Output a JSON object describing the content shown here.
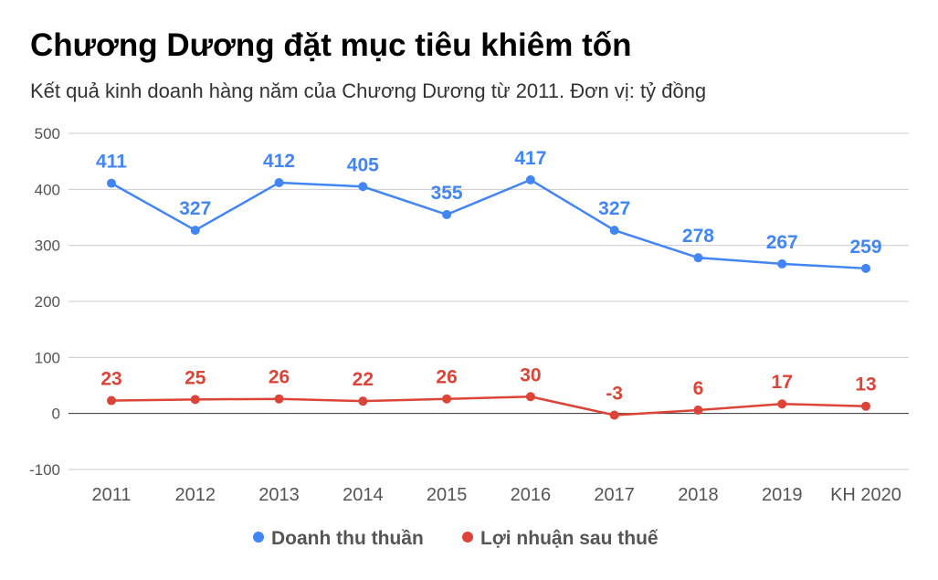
{
  "chart_data": {
    "type": "line",
    "title": "Chương Dương đặt mục tiêu khiêm tốn",
    "subtitle": "Kết quả kinh doanh hàng năm của Chương Dương từ 2011. Đơn vị: tỷ đồng",
    "categories": [
      "2011",
      "2012",
      "2013",
      "2014",
      "2015",
      "2016",
      "2017",
      "2018",
      "2019",
      "KH 2020"
    ],
    "ylim": [
      -100,
      500
    ],
    "yticks": [
      -100,
      0,
      100,
      200,
      300,
      400,
      500
    ],
    "grid": true,
    "legend": "bottom",
    "series": [
      {
        "name": "Doanh thu thuần",
        "color": "#4285f4",
        "values": [
          411,
          327,
          412,
          405,
          355,
          417,
          327,
          278,
          267,
          259
        ]
      },
      {
        "name": "Lợi nhuận sau thuế",
        "color": "#db4437",
        "values": [
          23,
          25,
          26,
          22,
          26,
          30,
          -3,
          6,
          17,
          13
        ]
      }
    ]
  }
}
